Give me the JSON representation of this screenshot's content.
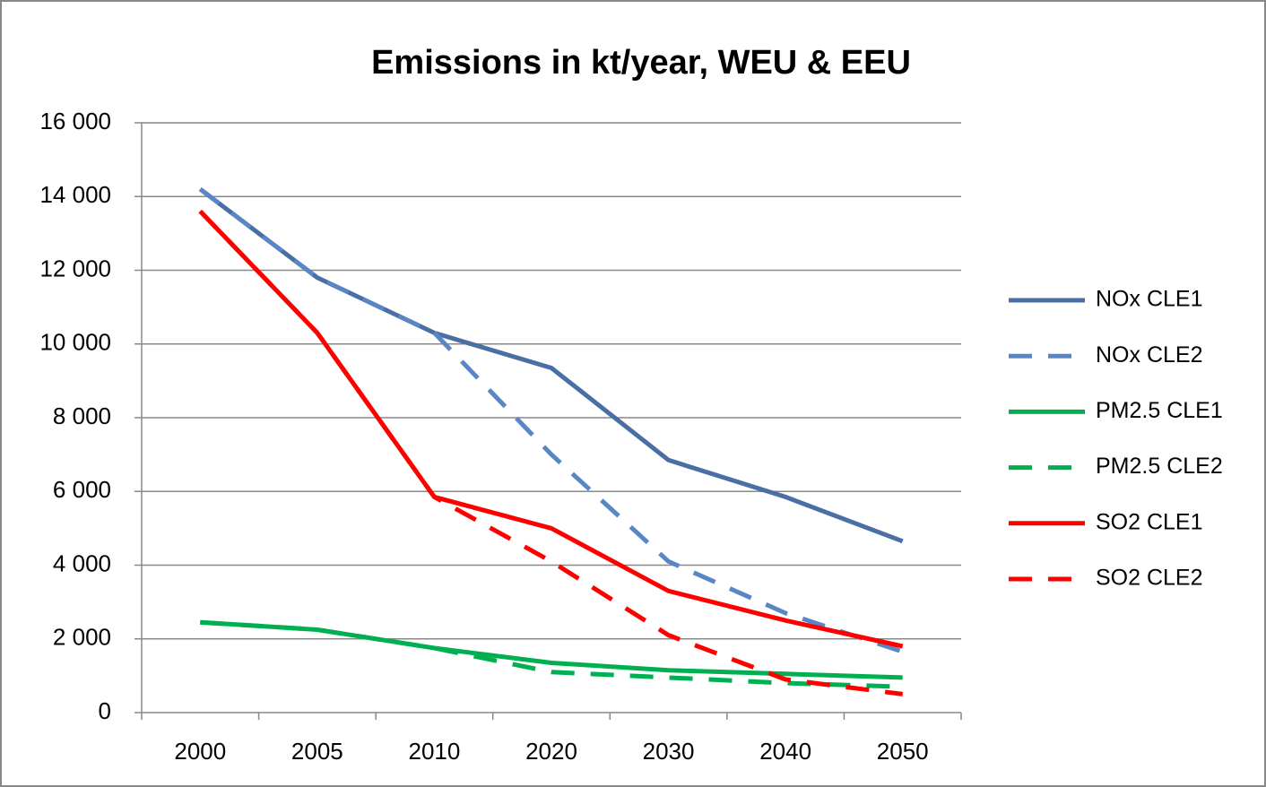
{
  "chart_data": {
    "type": "line",
    "title": "Emissions in kt/year, WEU & EEU",
    "categories": [
      "2000",
      "2005",
      "2010",
      "2020",
      "2030",
      "2040",
      "2050"
    ],
    "series": [
      {
        "name": "NOx CLE1",
        "color": "#4a6fa5",
        "dashed": false,
        "values": [
          14200,
          11800,
          10300,
          9350,
          6850,
          5850,
          4650
        ]
      },
      {
        "name": "NOx CLE2",
        "color": "#5b86c5",
        "dashed": true,
        "values": [
          14200,
          11800,
          10300,
          7000,
          4100,
          2700,
          1650
        ]
      },
      {
        "name": "PM2.5 CLE1",
        "color": "#00b050",
        "dashed": false,
        "values": [
          2450,
          2250,
          1750,
          1350,
          1150,
          1050,
          950
        ]
      },
      {
        "name": "PM2.5 CLE2",
        "color": "#00b050",
        "dashed": true,
        "values": [
          2450,
          2250,
          1750,
          1100,
          950,
          800,
          700
        ]
      },
      {
        "name": "SO2 CLE1",
        "color": "#ff0000",
        "dashed": false,
        "values": [
          13600,
          10300,
          5850,
          5000,
          3300,
          2500,
          1800
        ]
      },
      {
        "name": "SO2 CLE2",
        "color": "#ff0000",
        "dashed": true,
        "values": [
          13600,
          10300,
          5850,
          4100,
          2100,
          900,
          500
        ]
      }
    ],
    "ylim": [
      0,
      16000
    ],
    "yticks": [
      0,
      {
        "value": 2000,
        "label": "2 000"
      },
      {
        "value": 4000,
        "label": "4 000"
      },
      {
        "value": 6000,
        "label": "6 000"
      },
      {
        "value": 8000,
        "label": "8 000"
      },
      {
        "value": 10000,
        "label": "10 000"
      },
      {
        "value": 12000,
        "label": "12 000"
      },
      {
        "value": 14000,
        "label": "14 000"
      },
      {
        "value": 16000,
        "label": "16 000"
      }
    ],
    "grid": true,
    "legend": "right"
  }
}
